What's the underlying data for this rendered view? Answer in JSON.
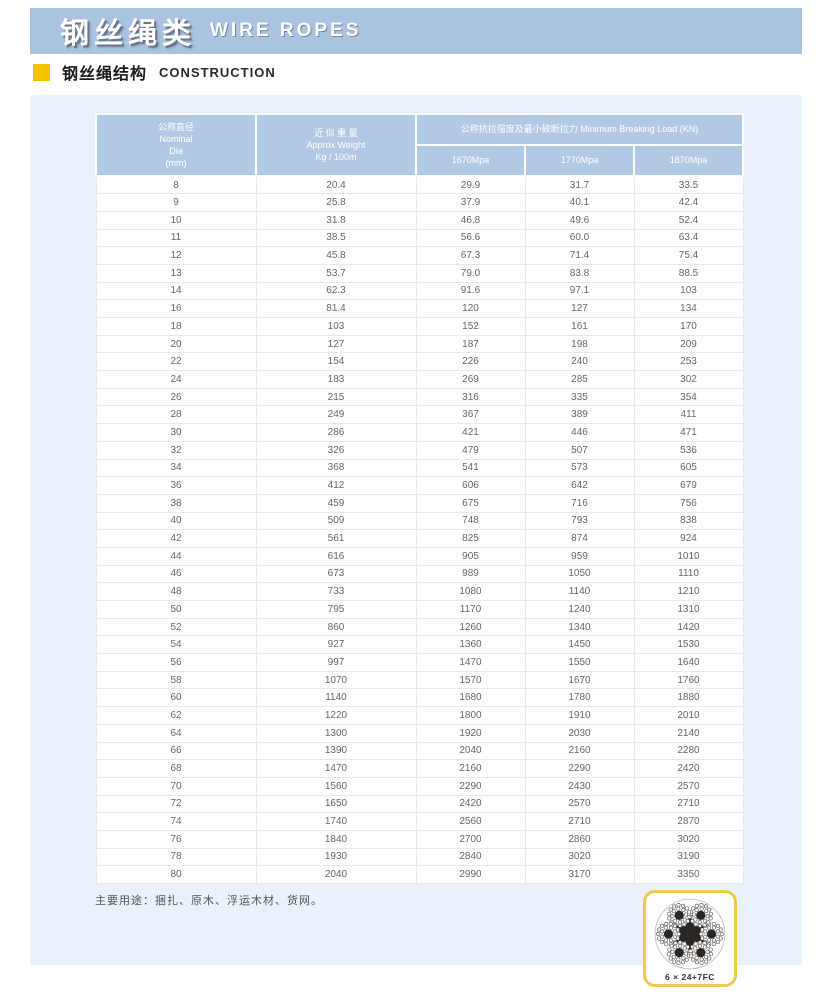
{
  "page_header": {
    "title_zh": "钢丝绳类",
    "title_en": "WIRE ROPES"
  },
  "section": {
    "title_zh": "钢丝绳结构",
    "title_en": "CONSTRUCTION"
  },
  "colors": {
    "band_blue": "#a9c3e0",
    "table_header_blue": "#b2c9e3",
    "panel_blue": "#e9f1fa",
    "accent_yellow": "#f5c400",
    "card_border_yellow": "#f2c84b"
  },
  "table": {
    "header": {
      "diameter_zh": "公称直径",
      "diameter_en1": "Nominal",
      "diameter_en2": "Dia",
      "diameter_unit": "(mm)",
      "weight_zh": "近 似 重 量",
      "weight_en": "Approx Weight",
      "weight_unit": "Kg / 100m",
      "breaking_group": "公称抗拉强度及最小破断拉力 Minimum Breaking Load (KN)",
      "grade1": "1670Mpa",
      "grade2": "1770Mpa",
      "grade3": "1870Mpa"
    },
    "rows": [
      [
        "8",
        "20.4",
        "29.9",
        "31.7",
        "33.5"
      ],
      [
        "9",
        "25.8",
        "37.9",
        "40.1",
        "42.4"
      ],
      [
        "10",
        "31.8",
        "46.8",
        "49.6",
        "52.4"
      ],
      [
        "11",
        "38.5",
        "56.6",
        "60.0",
        "63.4"
      ],
      [
        "12",
        "45.8",
        "67.3",
        "71.4",
        "75.4"
      ],
      [
        "13",
        "53.7",
        "79.0",
        "83.8",
        "88.5"
      ],
      [
        "14",
        "62.3",
        "91.6",
        "97.1",
        "103"
      ],
      [
        "16",
        "81.4",
        "120",
        "127",
        "134"
      ],
      [
        "18",
        "103",
        "152",
        "161",
        "170"
      ],
      [
        "20",
        "127",
        "187",
        "198",
        "209"
      ],
      [
        "22",
        "154",
        "226",
        "240",
        "253"
      ],
      [
        "24",
        "183",
        "269",
        "285",
        "302"
      ],
      [
        "26",
        "215",
        "316",
        "335",
        "354"
      ],
      [
        "28",
        "249",
        "367",
        "389",
        "411"
      ],
      [
        "30",
        "286",
        "421",
        "446",
        "471"
      ],
      [
        "32",
        "326",
        "479",
        "507",
        "536"
      ],
      [
        "34",
        "368",
        "541",
        "573",
        "605"
      ],
      [
        "36",
        "412",
        "606",
        "642",
        "679"
      ],
      [
        "38",
        "459",
        "675",
        "716",
        "756"
      ],
      [
        "40",
        "509",
        "748",
        "793",
        "838"
      ],
      [
        "42",
        "561",
        "825",
        "874",
        "924"
      ],
      [
        "44",
        "616",
        "905",
        "959",
        "1010"
      ],
      [
        "46",
        "673",
        "989",
        "1050",
        "1110"
      ],
      [
        "48",
        "733",
        "1080",
        "1140",
        "1210"
      ],
      [
        "50",
        "795",
        "1170",
        "1240",
        "1310"
      ],
      [
        "52",
        "860",
        "1260",
        "1340",
        "1420"
      ],
      [
        "54",
        "927",
        "1360",
        "1450",
        "1530"
      ],
      [
        "56",
        "997",
        "1470",
        "1550",
        "1640"
      ],
      [
        "58",
        "1070",
        "1570",
        "1670",
        "1760"
      ],
      [
        "60",
        "1140",
        "1680",
        "1780",
        "1880"
      ],
      [
        "62",
        "1220",
        "1800",
        "1910",
        "2010"
      ],
      [
        "64",
        "1300",
        "1920",
        "2030",
        "2140"
      ],
      [
        "66",
        "1390",
        "2040",
        "2160",
        "2280"
      ],
      [
        "68",
        "1470",
        "2160",
        "2290",
        "2420"
      ],
      [
        "70",
        "1560",
        "2290",
        "2430",
        "2570"
      ],
      [
        "72",
        "1650",
        "2420",
        "2570",
        "2710"
      ],
      [
        "74",
        "1740",
        "2560",
        "2710",
        "2870"
      ],
      [
        "76",
        "1840",
        "2700",
        "2860",
        "3020"
      ],
      [
        "78",
        "1930",
        "2840",
        "3020",
        "3190"
      ],
      [
        "80",
        "2040",
        "2990",
        "3170",
        "3350"
      ]
    ]
  },
  "footer": {
    "usage_note": "主要用途：捆扎、原木、浮运木材、货网。"
  },
  "rope_card": {
    "label": "6 × 24+7FC",
    "diagram": "wire-rope-cross-section"
  }
}
